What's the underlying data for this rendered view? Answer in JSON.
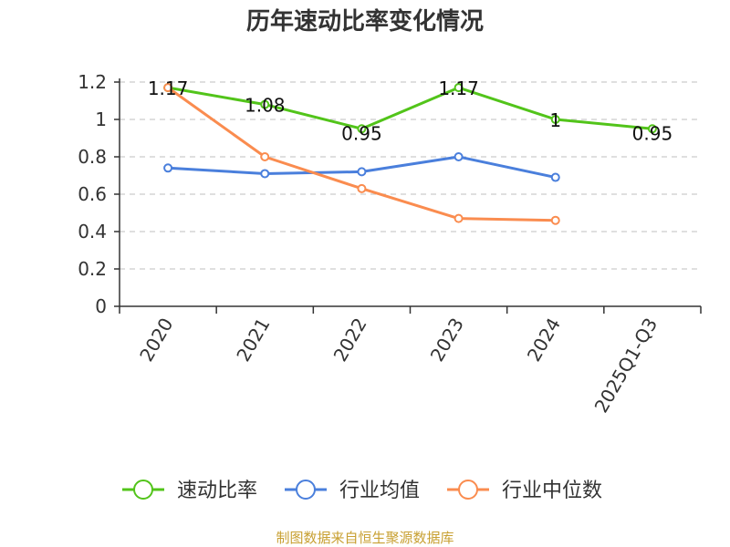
{
  "chart_data": {
    "type": "line",
    "title": "历年速动比率变化情况",
    "categories": [
      "2020",
      "2021",
      "2022",
      "2023",
      "2024",
      "2025Q1-Q3"
    ],
    "ylim": [
      0,
      1.2
    ],
    "yticks": [
      "0",
      "0.2",
      "0.4",
      "0.6",
      "0.8",
      "1",
      "1.2"
    ],
    "grid": true,
    "legend_position": "bottom",
    "series": [
      {
        "name": "速动比率",
        "color": "#52c41a",
        "values": [
          1.17,
          1.08,
          0.95,
          1.17,
          1.0,
          0.95
        ],
        "labels": [
          "1.17",
          "1.08",
          "0.95",
          "1.17",
          "1",
          "0.95"
        ]
      },
      {
        "name": "行业均值",
        "color": "#4a7fdc",
        "values": [
          0.74,
          0.71,
          0.72,
          0.8,
          0.69,
          null
        ]
      },
      {
        "name": "行业中位数",
        "color": "#fa8c4f",
        "values": [
          1.17,
          0.8,
          0.63,
          0.47,
          0.46,
          null
        ]
      }
    ],
    "source": "制图数据来自恒生聚源数据库"
  }
}
